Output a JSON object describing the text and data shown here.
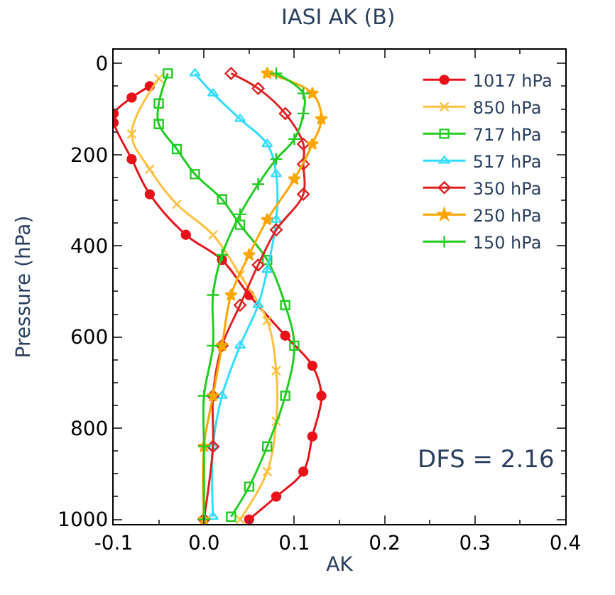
{
  "chart_data": {
    "type": "line",
    "orientation": "horizontal",
    "title": "IASI AK (B)",
    "xlabel": "AK",
    "ylabel": "Pressure (hPa)",
    "xlim": [
      -0.1,
      0.4
    ],
    "xticks": [
      -0.1,
      {
        "value": 0,
        "label": "0.0"
      },
      0.1,
      0.2,
      0.3,
      0.4
    ],
    "ylim": [
      1010,
      -30
    ],
    "yticks": [
      0,
      200,
      400,
      600,
      800,
      1000
    ],
    "legend": "top right",
    "annotations": [
      "DFS = 2.16"
    ],
    "series": [
      {
        "name": "1017 hPa",
        "color": "#e8121a",
        "marker": "circle",
        "x": [
          50,
          75,
          110,
          130,
          210,
          287,
          376,
          431,
          508,
          597,
          663,
          729,
          818,
          895,
          950,
          1000
        ],
        "values": [
          -0.06,
          -0.08,
          -0.1,
          -0.1,
          -0.08,
          -0.06,
          -0.02,
          0.02,
          0.05,
          0.09,
          0.12,
          0.13,
          0.12,
          0.11,
          0.08,
          0.05
        ]
      },
      {
        "name": "850 hPa",
        "color": "#ffc040",
        "marker": "cross",
        "x": [
          33,
          155,
          232,
          309,
          376,
          464,
          564,
          674,
          785,
          895,
          1000
        ],
        "values": [
          -0.05,
          -0.08,
          -0.06,
          -0.03,
          0.01,
          0.04,
          0.07,
          0.08,
          0.08,
          0.07,
          0.04
        ]
      },
      {
        "name": "717 hPa",
        "color": "#22cc22",
        "marker": "square",
        "x": [
          22,
          88,
          133,
          188,
          243,
          298,
          354,
          431,
          530,
          619,
          729,
          840,
          928,
          994
        ],
        "values": [
          -0.04,
          -0.05,
          -0.05,
          -0.03,
          -0.01,
          0.02,
          0.04,
          0.07,
          0.09,
          0.1,
          0.09,
          0.07,
          0.05,
          0.03
        ]
      },
      {
        "name": "517 hPa",
        "color": "#33ddff",
        "marker": "triangle",
        "x": [
          22,
          66,
          122,
          177,
          243,
          343,
          453,
          530,
          619,
          729,
          840,
          994
        ],
        "values": [
          -0.01,
          0.01,
          0.04,
          0.07,
          0.08,
          0.08,
          0.07,
          0.06,
          0.04,
          0.02,
          0.01,
          0.01
        ]
      },
      {
        "name": "350 hPa",
        "color": "#dd2222",
        "marker": "diamond",
        "x": [
          22,
          55,
          110,
          177,
          221,
          287,
          365,
          442,
          530,
          619,
          729,
          840,
          1000
        ],
        "values": [
          0.03,
          0.06,
          0.09,
          0.11,
          0.11,
          0.11,
          0.08,
          0.06,
          0.04,
          0.02,
          0.01,
          0.01,
          0
        ]
      },
      {
        "name": "250 hPa",
        "color": "#ffa500",
        "marker": "star",
        "x": [
          22,
          66,
          122,
          177,
          254,
          343,
          420,
          508,
          619,
          729,
          840,
          1000
        ],
        "values": [
          0.07,
          0.12,
          0.13,
          0.12,
          0.1,
          0.07,
          0.05,
          0.03,
          0.02,
          0.01,
          0,
          0
        ]
      },
      {
        "name": "150 hPa",
        "color": "#22cc22",
        "marker": "plus",
        "x": [
          22,
          66,
          110,
          166,
          210,
          265,
          331,
          420,
          508,
          619,
          729,
          840,
          1000
        ],
        "values": [
          0.08,
          0.11,
          0.11,
          0.1,
          0.08,
          0.06,
          0.04,
          0.02,
          0.01,
          0.01,
          0,
          0,
          0
        ]
      }
    ]
  }
}
